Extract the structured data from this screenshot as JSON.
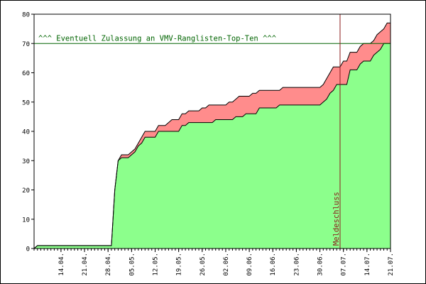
{
  "chart_data": {
    "type": "area",
    "title": "",
    "xlabel": "",
    "ylabel": "",
    "ylim": [
      0,
      80
    ],
    "y_ticks": [
      0,
      10,
      20,
      30,
      40,
      50,
      60,
      70,
      80
    ],
    "x_range": [
      "2024-04-06",
      "2024-07-21"
    ],
    "x_tick_labels": [
      "14.04.",
      "21.04.",
      "28.04.",
      "05.05.",
      "12.05.",
      "19.05.",
      "26.05.",
      "02.06.",
      "09.06.",
      "16.06.",
      "23.06.",
      "30.06.",
      "07.07.",
      "14.07.",
      "21.07."
    ],
    "grid": false,
    "series": [
      {
        "role": "lower",
        "color": "#8cff8c",
        "points": [
          [
            "04-06",
            0
          ],
          [
            "04-07",
            1
          ],
          [
            "04-28",
            1
          ],
          [
            "04-29",
            1
          ],
          [
            "04-30",
            20
          ],
          [
            "05-01",
            30
          ],
          [
            "05-02",
            31
          ],
          [
            "05-04",
            31
          ],
          [
            "05-05",
            32
          ],
          [
            "05-06",
            33
          ],
          [
            "05-07",
            35
          ],
          [
            "05-08",
            36
          ],
          [
            "05-09",
            38
          ],
          [
            "05-12",
            38
          ],
          [
            "05-13",
            40
          ],
          [
            "05-19",
            40
          ],
          [
            "05-20",
            42
          ],
          [
            "05-21",
            42
          ],
          [
            "05-22",
            43
          ],
          [
            "05-29",
            43
          ],
          [
            "05-30",
            44
          ],
          [
            "06-04",
            44
          ],
          [
            "06-05",
            45
          ],
          [
            "06-07",
            45
          ],
          [
            "06-08",
            46
          ],
          [
            "06-11",
            46
          ],
          [
            "06-12",
            48
          ],
          [
            "06-17",
            48
          ],
          [
            "06-18",
            49
          ],
          [
            "06-30",
            49
          ],
          [
            "07-01",
            50
          ],
          [
            "07-02",
            51
          ],
          [
            "07-03",
            53
          ],
          [
            "07-04",
            54
          ],
          [
            "07-05",
            56
          ],
          [
            "07-08",
            56
          ],
          [
            "07-09",
            61
          ],
          [
            "07-11",
            61
          ],
          [
            "07-12",
            63
          ],
          [
            "07-13",
            64
          ],
          [
            "07-15",
            64
          ],
          [
            "07-16",
            66
          ],
          [
            "07-17",
            67
          ],
          [
            "07-18",
            68
          ],
          [
            "07-19",
            70
          ],
          [
            "07-21",
            70
          ]
        ]
      },
      {
        "role": "upper",
        "color": "#ff8c8c",
        "points": [
          [
            "04-06",
            0
          ],
          [
            "04-07",
            1
          ],
          [
            "04-28",
            1
          ],
          [
            "04-29",
            1
          ],
          [
            "04-30",
            20
          ],
          [
            "05-01",
            30
          ],
          [
            "05-02",
            32
          ],
          [
            "05-04",
            32
          ],
          [
            "05-05",
            33
          ],
          [
            "05-06",
            34
          ],
          [
            "05-07",
            36
          ],
          [
            "05-08",
            38
          ],
          [
            "05-09",
            40
          ],
          [
            "05-12",
            40
          ],
          [
            "05-13",
            42
          ],
          [
            "05-15",
            42
          ],
          [
            "05-16",
            43
          ],
          [
            "05-17",
            44
          ],
          [
            "05-19",
            44
          ],
          [
            "05-20",
            46
          ],
          [
            "05-21",
            46
          ],
          [
            "05-22",
            47
          ],
          [
            "05-25",
            47
          ],
          [
            "05-26",
            48
          ],
          [
            "05-27",
            48
          ],
          [
            "05-28",
            49
          ],
          [
            "06-02",
            49
          ],
          [
            "06-03",
            50
          ],
          [
            "06-04",
            50
          ],
          [
            "06-05",
            51
          ],
          [
            "06-06",
            52
          ],
          [
            "06-09",
            52
          ],
          [
            "06-10",
            53
          ],
          [
            "06-11",
            53
          ],
          [
            "06-12",
            54
          ],
          [
            "06-18",
            54
          ],
          [
            "06-19",
            55
          ],
          [
            "06-30",
            55
          ],
          [
            "07-01",
            56
          ],
          [
            "07-02",
            58
          ],
          [
            "07-03",
            60
          ],
          [
            "07-04",
            62
          ],
          [
            "07-06",
            62
          ],
          [
            "07-07",
            64
          ],
          [
            "07-08",
            64
          ],
          [
            "07-09",
            67
          ],
          [
            "07-11",
            67
          ],
          [
            "07-12",
            69
          ],
          [
            "07-13",
            70
          ],
          [
            "07-15",
            70
          ],
          [
            "07-16",
            71
          ],
          [
            "07-17",
            73
          ],
          [
            "07-18",
            74
          ],
          [
            "07-19",
            75
          ],
          [
            "07-20",
            77
          ],
          [
            "07-21",
            77
          ]
        ]
      }
    ],
    "annotations": [
      {
        "type": "hline",
        "y": 70,
        "color": "#006400",
        "label": "^^^ Eventuell Zulassung an VMV-Ranglisten-Top-Ten ^^^"
      },
      {
        "type": "vline",
        "x": "07-06",
        "color": "#8b1a1a",
        "label": "Meldeschluss"
      }
    ]
  }
}
